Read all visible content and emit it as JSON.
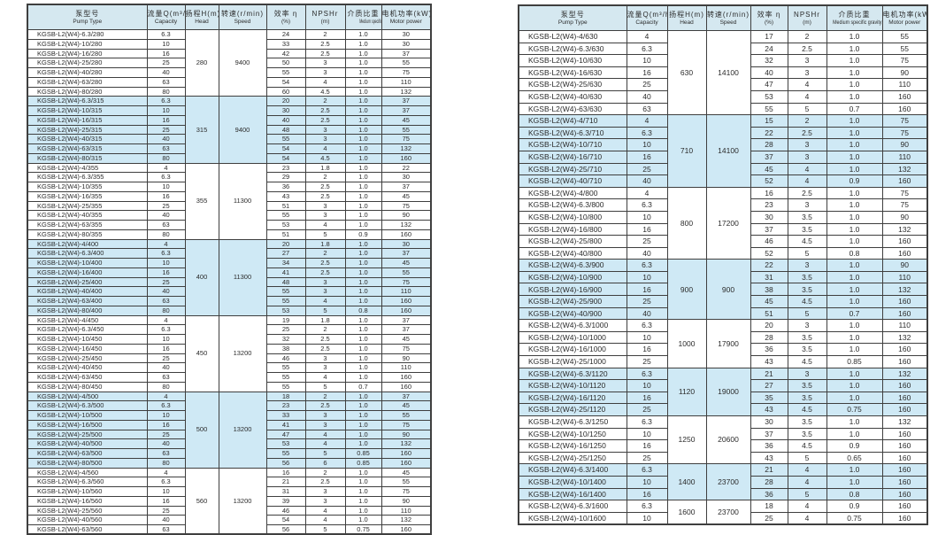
{
  "colors": {
    "shade": "#cfe9f5",
    "header_bg": "#d5e8f0",
    "border": "#3f3f3f",
    "text": "#2b2b2b"
  },
  "columns": [
    {
      "zh": "泵型号",
      "en": "Pump Type"
    },
    {
      "zh": "流量Q(m³/h)",
      "en": "Capacity"
    },
    {
      "zh": "扬程H(m)",
      "en": "Head"
    },
    {
      "zh": "转速(r/min)",
      "en": "Speed"
    },
    {
      "zh": "效率 η",
      "en": "(%)"
    },
    {
      "zh": "NPSHr",
      "en": "(m)"
    },
    {
      "zh": "介质比重",
      "en": "Medium specific gravity"
    },
    {
      "zh": "电机功率(kW)",
      "en": "Motor power"
    }
  ],
  "tables": [
    {
      "id": "left",
      "groups": [
        {
          "head": "280",
          "speed": "9400",
          "shaded": false,
          "rows": [
            [
              "KGSB-L2(W4)-6.3/280",
              "6.3",
              "24",
              "2",
              "1.0",
              "30"
            ],
            [
              "KGSB-L2(W4)-10/280",
              "10",
              "33",
              "2.5",
              "1.0",
              "30"
            ],
            [
              "KGSB-L2(W4)-16/280",
              "16",
              "42",
              "2.5",
              "1.0",
              "37"
            ],
            [
              "KGSB-L2(W4)-25/280",
              "25",
              "50",
              "3",
              "1.0",
              "55"
            ],
            [
              "KGSB-L2(W4)-40/280",
              "40",
              "55",
              "3",
              "1.0",
              "75"
            ],
            [
              "KGSB-L2(W4)-63/280",
              "63",
              "54",
              "4",
              "1.0",
              "110"
            ],
            [
              "KGSB-L2(W4)-80/280",
              "80",
              "60",
              "4.5",
              "1.0",
              "132"
            ]
          ]
        },
        {
          "head": "315",
          "speed": "9400",
          "shaded": true,
          "rows": [
            [
              "KGSB-L2(W4)-6.3/315",
              "6.3",
              "20",
              "2",
              "1.0",
              "37"
            ],
            [
              "KGSB-L2(W4)-10/315",
              "10",
              "30",
              "2.5",
              "1.0",
              "37"
            ],
            [
              "KGSB-L2(W4)-16/315",
              "16",
              "40",
              "2.5",
              "1.0",
              "45"
            ],
            [
              "KGSB-L2(W4)-25/315",
              "25",
              "48",
              "3",
              "1.0",
              "55"
            ],
            [
              "KGSB-L2(W4)-40/315",
              "40",
              "55",
              "3",
              "1.0",
              "75"
            ],
            [
              "KGSB-L2(W4)-63/315",
              "63",
              "54",
              "4",
              "1.0",
              "132"
            ],
            [
              "KGSB-L2(W4)-80/315",
              "80",
              "54",
              "4.5",
              "1.0",
              "160"
            ]
          ]
        },
        {
          "head": "355",
          "speed": "11300",
          "shaded": false,
          "rows": [
            [
              "KGSB-L2(W4)-4/355",
              "4",
              "23",
              "1.8",
              "1.0",
              "22"
            ],
            [
              "KGSB-L2(W4)-6.3/355",
              "6.3",
              "29",
              "2",
              "1.0",
              "30"
            ],
            [
              "KGSB-L2(W4)-10/355",
              "10",
              "36",
              "2.5",
              "1.0",
              "37"
            ],
            [
              "KGSB-L2(W4)-16/355",
              "16",
              "43",
              "2.5",
              "1.0",
              "45"
            ],
            [
              "KGSB-L2(W4)-25/355",
              "25",
              "51",
              "3",
              "1.0",
              "75"
            ],
            [
              "KGSB-L2(W4)-40/355",
              "40",
              "55",
              "3",
              "1.0",
              "90"
            ],
            [
              "KGSB-L2(W4)-63/355",
              "63",
              "53",
              "4",
              "1.0",
              "132"
            ],
            [
              "KGSB-L2(W4)-80/355",
              "80",
              "51",
              "5",
              "0.9",
              "160"
            ]
          ]
        },
        {
          "head": "400",
          "speed": "11300",
          "shaded": true,
          "rows": [
            [
              "KGSB-L2(W4)-4/400",
              "4",
              "20",
              "1.8",
              "1.0",
              "30"
            ],
            [
              "KGSB-L2(W4)-6.3/400",
              "6.3",
              "27",
              "2",
              "1.0",
              "37"
            ],
            [
              "KGSB-L2(W4)-10/400",
              "10",
              "34",
              "2.5",
              "1.0",
              "45"
            ],
            [
              "KGSB-L2(W4)-16/400",
              "16",
              "41",
              "2.5",
              "1.0",
              "55"
            ],
            [
              "KGSB-L2(W4)-25/400",
              "25",
              "48",
              "3",
              "1.0",
              "75"
            ],
            [
              "KGSB-L2(W4)-40/400",
              "40",
              "55",
              "3",
              "1.0",
              "110"
            ],
            [
              "KGSB-L2(W4)-63/400",
              "63",
              "55",
              "4",
              "1.0",
              "160"
            ],
            [
              "KGSB-L2(W4)-80/400",
              "80",
              "53",
              "5",
              "0.8",
              "160"
            ]
          ]
        },
        {
          "head": "450",
          "speed": "13200",
          "shaded": false,
          "rows": [
            [
              "KGSB-L2(W4)-4/450",
              "4",
              "19",
              "1.8",
              "1.0",
              "37"
            ],
            [
              "KGSB-L2(W4)-6.3/450",
              "6.3",
              "25",
              "2",
              "1.0",
              "37"
            ],
            [
              "KGSB-L2(W4)-10/450",
              "10",
              "32",
              "2.5",
              "1.0",
              "45"
            ],
            [
              "KGSB-L2(W4)-16/450",
              "16",
              "38",
              "2.5",
              "1.0",
              "75"
            ],
            [
              "KGSB-L2(W4)-25/450",
              "25",
              "46",
              "3",
              "1.0",
              "90"
            ],
            [
              "KGSB-L2(W4)-40/450",
              "40",
              "55",
              "3",
              "1.0",
              "110"
            ],
            [
              "KGSB-L2(W4)-63/450",
              "63",
              "55",
              "4",
              "1.0",
              "160"
            ],
            [
              "KGSB-L2(W4)-80/450",
              "80",
              "55",
              "5",
              "0.7",
              "160"
            ]
          ]
        },
        {
          "head": "500",
          "speed": "13200",
          "shaded": true,
          "rows": [
            [
              "KGSB-L2(W4)-4/500",
              "4",
              "18",
              "2",
              "1.0",
              "37"
            ],
            [
              "KGSB-L2(W4)-6.3/500",
              "6.3",
              "23",
              "2.5",
              "1.0",
              "45"
            ],
            [
              "KGSB-L2(W4)-10/500",
              "10",
              "33",
              "3",
              "1.0",
              "55"
            ],
            [
              "KGSB-L2(W4)-16/500",
              "16",
              "41",
              "3",
              "1.0",
              "75"
            ],
            [
              "KGSB-L2(W4)-25/500",
              "25",
              "47",
              "4",
              "1.0",
              "90"
            ],
            [
              "KGSB-L2(W4)-40/500",
              "40",
              "53",
              "4",
              "1.0",
              "132"
            ],
            [
              "KGSB-L2(W4)-63/500",
              "63",
              "55",
              "5",
              "0.85",
              "160"
            ],
            [
              "KGSB-L2(W4)-80/500",
              "80",
              "56",
              "6",
              "0.85",
              "160"
            ]
          ]
        },
        {
          "head": "560",
          "speed": "13200",
          "shaded": false,
          "rows": [
            [
              "KGSB-L2(W4)-4/560",
              "4",
              "16",
              "2",
              "1.0",
              "45"
            ],
            [
              "KGSB-L2(W4)-6.3/560",
              "6.3",
              "21",
              "2.5",
              "1.0",
              "55"
            ],
            [
              "KGSB-L2(W4)-10/560",
              "10",
              "31",
              "3",
              "1.0",
              "75"
            ],
            [
              "KGSB-L2(W4)-16/560",
              "16",
              "39",
              "3",
              "1.0",
              "90"
            ],
            [
              "KGSB-L2(W4)-25/560",
              "25",
              "46",
              "4",
              "1.0",
              "110"
            ],
            [
              "KGSB-L2(W4)-40/560",
              "40",
              "54",
              "4",
              "1.0",
              "132"
            ],
            [
              "KGSB-L2(W4)-63/560",
              "63",
              "56",
              "5",
              "0.75",
              "160"
            ]
          ]
        }
      ]
    },
    {
      "id": "right",
      "groups": [
        {
          "head": "630",
          "speed": "14100",
          "shaded": false,
          "rows": [
            [
              "KGSB-L2(W4)-4/630",
              "4",
              "17",
              "2",
              "1.0",
              "55"
            ],
            [
              "KGSB-L2(W4)-6.3/630",
              "6.3",
              "24",
              "2.5",
              "1.0",
              "55"
            ],
            [
              "KGSB-L2(W4)-10/630",
              "10",
              "32",
              "3",
              "1.0",
              "75"
            ],
            [
              "KGSB-L2(W4)-16/630",
              "16",
              "40",
              "3",
              "1.0",
              "90"
            ],
            [
              "KGSB-L2(W4)-25/630",
              "25",
              "47",
              "4",
              "1.0",
              "110"
            ],
            [
              "KGSB-L2(W4)-40/630",
              "40",
              "53",
              "4",
              "1.0",
              "160"
            ],
            [
              "KGSB-L2(W4)-63/630",
              "63",
              "55",
              "5",
              "0.7",
              "160"
            ]
          ]
        },
        {
          "head": "710",
          "speed": "14100",
          "shaded": true,
          "rows": [
            [
              "KGSB-L2(W4)-4/710",
              "4",
              "15",
              "2",
              "1.0",
              "75"
            ],
            [
              "KGSB-L2(W4)-6.3/710",
              "6.3",
              "22",
              "2.5",
              "1.0",
              "75"
            ],
            [
              "KGSB-L2(W4)-10/710",
              "10",
              "28",
              "3",
              "1.0",
              "90"
            ],
            [
              "KGSB-L2(W4)-16/710",
              "16",
              "37",
              "3",
              "1.0",
              "110"
            ],
            [
              "KGSB-L2(W4)-25/710",
              "25",
              "45",
              "4",
              "1.0",
              "132"
            ],
            [
              "KGSB-L2(W4)-40/710",
              "40",
              "52",
              "4",
              "0.9",
              "160"
            ]
          ]
        },
        {
          "head": "800",
          "speed": "17200",
          "shaded": false,
          "rows": [
            [
              "KGSB-L2(W4)-4/800",
              "4",
              "16",
              "2.5",
              "1.0",
              "75"
            ],
            [
              "KGSB-L2(W4)-6.3/800",
              "6.3",
              "23",
              "3",
              "1.0",
              "75"
            ],
            [
              "KGSB-L2(W4)-10/800",
              "10",
              "30",
              "3.5",
              "1.0",
              "90"
            ],
            [
              "KGSB-L2(W4)-16/800",
              "16",
              "37",
              "3.5",
              "1.0",
              "132"
            ],
            [
              "KGSB-L2(W4)-25/800",
              "25",
              "46",
              "4.5",
              "1.0",
              "160"
            ],
            [
              "KGSB-L2(W4)-40/800",
              "40",
              "52",
              "5",
              "0.8",
              "160"
            ]
          ]
        },
        {
          "head": "900",
          "speed": "900",
          "shaded": true,
          "rows": [
            [
              "KGSB-L2(W4)-6.3/900",
              "6.3",
              "22",
              "3",
              "1.0",
              "90"
            ],
            [
              "KGSB-L2(W4)-10/900",
              "10",
              "31",
              "3.5",
              "1.0",
              "110"
            ],
            [
              "KGSB-L2(W4)-16/900",
              "16",
              "38",
              "3.5",
              "1.0",
              "132"
            ],
            [
              "KGSB-L2(W4)-25/900",
              "25",
              "45",
              "4.5",
              "1.0",
              "160"
            ],
            [
              "KGSB-L2(W4)-40/900",
              "40",
              "51",
              "5",
              "0.7",
              "160"
            ]
          ]
        },
        {
          "head": "1000",
          "speed": "17900",
          "shaded": false,
          "rows": [
            [
              "KGSB-L2(W4)-6.3/1000",
              "6.3",
              "20",
              "3",
              "1.0",
              "110"
            ],
            [
              "KGSB-L2(W4)-10/1000",
              "10",
              "28",
              "3.5",
              "1.0",
              "132"
            ],
            [
              "KGSB-L2(W4)-16/1000",
              "16",
              "36",
              "3.5",
              "1.0",
              "160"
            ],
            [
              "KGSB-L2(W4)-25/1000",
              "25",
              "43",
              "4.5",
              "0.85",
              "160"
            ]
          ]
        },
        {
          "head": "1120",
          "speed": "19000",
          "shaded": true,
          "rows": [
            [
              "KGSB-L2(W4)-6.3/1120",
              "6.3",
              "21",
              "3",
              "1.0",
              "132"
            ],
            [
              "KGSB-L2(W4)-10/1120",
              "10",
              "27",
              "3.5",
              "1.0",
              "160"
            ],
            [
              "KGSB-L2(W4)-16/1120",
              "16",
              "35",
              "3.5",
              "1.0",
              "160"
            ],
            [
              "KGSB-L2(W4)-25/1120",
              "25",
              "43",
              "4.5",
              "0.75",
              "160"
            ]
          ]
        },
        {
          "head": "1250",
          "speed": "20600",
          "shaded": false,
          "rows": [
            [
              "KGSB-L2(W4)-6.3/1250",
              "6.3",
              "30",
              "3.5",
              "1.0",
              "132"
            ],
            [
              "KGSB-L2(W4)-10/1250",
              "10",
              "37",
              "3.5",
              "1.0",
              "160"
            ],
            [
              "KGSB-L2(W4)-16/1250",
              "16",
              "36",
              "4.5",
              "0.9",
              "160"
            ],
            [
              "KGSB-L2(W4)-25/1250",
              "25",
              "43",
              "5",
              "0.65",
              "160"
            ]
          ]
        },
        {
          "head": "1400",
          "speed": "23700",
          "shaded": true,
          "rows": [
            [
              "KGSB-L2(W4)-6.3/1400",
              "6.3",
              "21",
              "4",
              "1.0",
              "160"
            ],
            [
              "KGSB-L2(W4)-10/1400",
              "10",
              "28",
              "4",
              "1.0",
              "160"
            ],
            [
              "KGSB-L2(W4)-16/1400",
              "16",
              "36",
              "5",
              "0.8",
              "160"
            ]
          ]
        },
        {
          "head": "1600",
          "speed": "23700",
          "shaded": false,
          "rows": [
            [
              "KGSB-L2(W4)-6.3/1600",
              "6.3",
              "18",
              "4",
              "0.9",
              "160"
            ],
            [
              "KGSB-L2(W4)-10/1600",
              "10",
              "25",
              "4",
              "0.75",
              "160"
            ]
          ]
        }
      ]
    }
  ]
}
